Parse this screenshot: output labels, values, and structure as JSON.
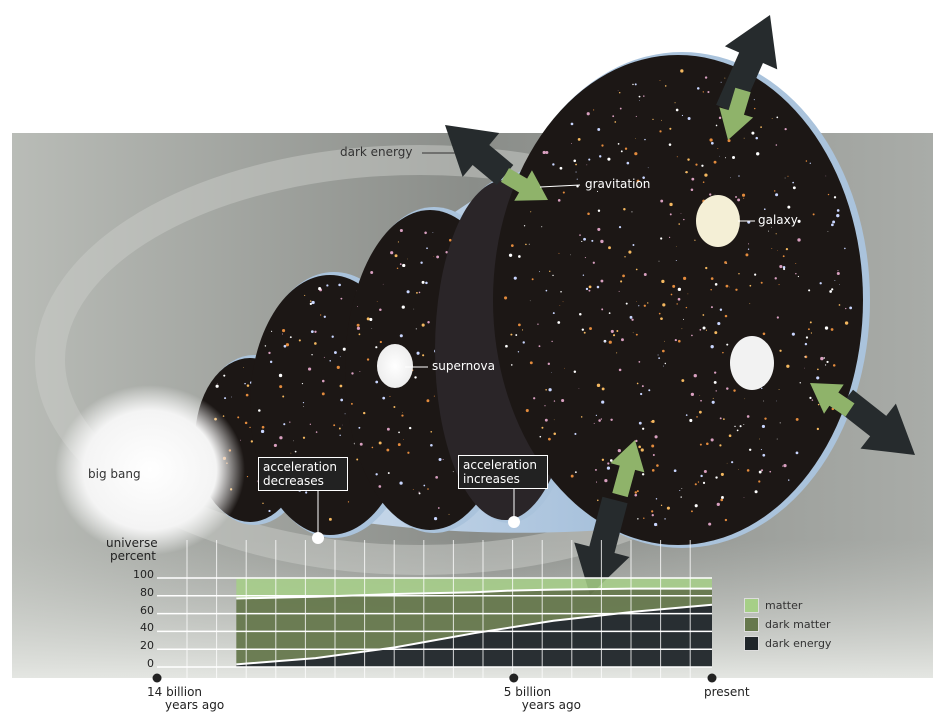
{
  "labels": {
    "dark_energy": "dark energy",
    "gravitation": "gravitation",
    "galaxy": "galaxy",
    "supernova": "supernova",
    "big_bang": "big bang",
    "acceleration_decreases": "acceleration decreases",
    "acceleration_increases": "acceleration increases"
  },
  "colors": {
    "matter": "#a6cf87",
    "dark_matter": "#66784d",
    "dark_energy": "#20262a",
    "arrow": "#262b2d",
    "gravity_arrow": "#8fb36a",
    "background": "#9a9d98"
  },
  "chart_data": {
    "type": "area",
    "stacked": true,
    "ylabel": "universe percent",
    "ylim": [
      0,
      100
    ],
    "yticks": [
      "0",
      "20",
      "40",
      "60",
      "80",
      "100"
    ],
    "x_unit": "billion years ago",
    "xlim": [
      14,
      0
    ],
    "xticks": [
      {
        "value": 14,
        "label": "14  billion",
        "sublabel": "years ago"
      },
      {
        "value": 5,
        "label": "5 billion",
        "sublabel": "years ago"
      },
      {
        "value": 0,
        "label": "present",
        "sublabel": ""
      }
    ],
    "grid": true,
    "x": [
      12,
      10,
      8,
      6,
      5,
      4,
      2,
      0
    ],
    "series": [
      {
        "name": "dark energy",
        "values": [
          3,
          10,
          22,
          38,
          45,
          52,
          62,
          70
        ]
      },
      {
        "name": "dark matter",
        "values": [
          74,
          69,
          60,
          46,
          41,
          35,
          26,
          18
        ]
      },
      {
        "name": "matter",
        "values": [
          23,
          21,
          18,
          16,
          14,
          13,
          12,
          12
        ]
      }
    ],
    "legend_position": "right"
  }
}
